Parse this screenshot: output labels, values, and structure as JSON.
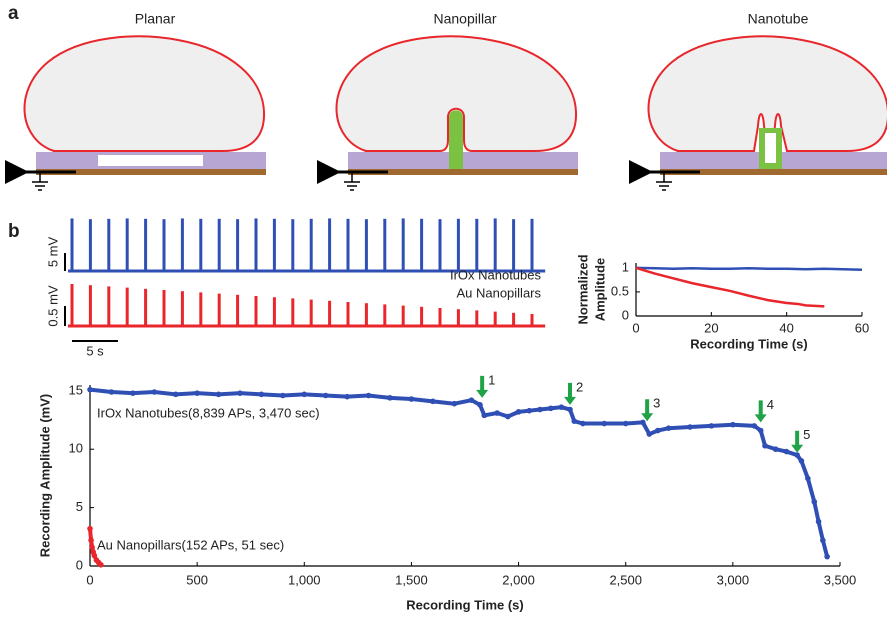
{
  "panel_a": {
    "label": "a",
    "titles": [
      "Planar",
      "Nanopillar",
      "Nanotube"
    ]
  },
  "panel_b": {
    "label": "b"
  },
  "chart_data": [
    {
      "type": "trace",
      "x": [
        0,
        2,
        4,
        6,
        8,
        10,
        12,
        14,
        16,
        18,
        20,
        22,
        24,
        26,
        28,
        30,
        32,
        34,
        36,
        38,
        40,
        42,
        44,
        46,
        48,
        50
      ],
      "series": [
        {
          "name": "IrOx Nanotubes",
          "color": "#2f4fb5",
          "values": [
            14.6,
            14.4,
            14.5,
            14.6,
            14.5,
            14.4,
            14.6,
            14.5,
            14.5,
            14.4,
            14.6,
            14.5,
            14.4,
            14.5,
            14.6,
            14.5,
            14.4,
            14.5,
            14.6,
            14.5,
            14.4,
            14.5,
            14.5,
            14.6,
            14.4,
            14.5
          ],
          "scale_bar": {
            "value": 5,
            "label": "5 mV"
          }
        },
        {
          "name": "Au Nanopillars",
          "color": "#e8262b",
          "values": [
            1.05,
            1.02,
            0.99,
            0.96,
            0.93,
            0.9,
            0.87,
            0.84,
            0.81,
            0.78,
            0.75,
            0.72,
            0.69,
            0.66,
            0.63,
            0.6,
            0.57,
            0.54,
            0.51,
            0.48,
            0.45,
            0.42,
            0.39,
            0.36,
            0.33,
            0.3
          ],
          "scale_bar": {
            "value": 0.5,
            "label": "0.5 mV"
          }
        }
      ],
      "time_bar": {
        "value": 5,
        "label": "5 s"
      }
    },
    {
      "type": "line",
      "y_label": [
        "Normalized",
        "Amplitude"
      ],
      "x_label": "Recording Time (s)",
      "xlim": [
        0,
        60
      ],
      "ylim": [
        0,
        1.1
      ],
      "xticks": [
        0,
        20,
        40,
        60
      ],
      "yticks": [
        0,
        0.5,
        1
      ],
      "series": [
        {
          "color": "#2f4fb5",
          "x": [
            0,
            5,
            10,
            15,
            20,
            25,
            30,
            35,
            40,
            45,
            50,
            55,
            60
          ],
          "values": [
            1,
            0.99,
            0.98,
            0.99,
            0.98,
            0.98,
            0.99,
            0.98,
            0.98,
            0.97,
            0.98,
            0.97,
            0.96
          ]
        },
        {
          "color": "#e8262b",
          "x": [
            0,
            2,
            5,
            10,
            15,
            20,
            25,
            30,
            35,
            40,
            43,
            45,
            50
          ],
          "values": [
            1,
            0.95,
            0.88,
            0.78,
            0.68,
            0.6,
            0.52,
            0.42,
            0.33,
            0.27,
            0.25,
            0.22,
            0.2
          ]
        }
      ]
    },
    {
      "type": "scatter",
      "x_label": "Recording Time (s)",
      "y_label": "Recording Amplitude (mV)",
      "xlim": [
        0,
        3500
      ],
      "ylim": [
        0,
        15.5
      ],
      "xticks": [
        0,
        500,
        {
          "value": 1000,
          "label": "1,000"
        },
        {
          "value": 1500,
          "label": "1,500"
        },
        {
          "value": 2000,
          "label": "2,000"
        },
        {
          "value": 2500,
          "label": "2,500"
        },
        {
          "value": 3000,
          "label": "3,000"
        },
        {
          "value": 3500,
          "label": "3,500"
        }
      ],
      "yticks": [
        0,
        5,
        10,
        15
      ],
      "series": [
        {
          "name": "IrOx Nanotubes(8,839 APs, 3,470 sec)",
          "color": "#2f4fb5",
          "x": [
            0,
            100,
            200,
            300,
            400,
            500,
            600,
            700,
            800,
            900,
            1000,
            1100,
            1200,
            1300,
            1400,
            1500,
            1600,
            1700,
            1780,
            1820,
            1840,
            1900,
            1950,
            2000,
            2050,
            2100,
            2150,
            2200,
            2240,
            2260,
            2300,
            2400,
            2500,
            2580,
            2610,
            2650,
            2700,
            2800,
            2900,
            3000,
            3100,
            3130,
            3150,
            3200,
            3250,
            3300,
            3320,
            3350,
            3380,
            3400,
            3420,
            3440
          ],
          "values": [
            15.1,
            14.9,
            14.8,
            14.9,
            14.7,
            14.8,
            14.7,
            14.8,
            14.7,
            14.6,
            14.7,
            14.6,
            14.5,
            14.6,
            14.4,
            14.3,
            14.1,
            13.9,
            14.2,
            13.8,
            12.9,
            13.1,
            12.8,
            13.2,
            13.3,
            13.4,
            13.5,
            13.6,
            13.4,
            12.4,
            12.2,
            12.2,
            12.2,
            12.3,
            11.3,
            11.6,
            11.8,
            11.9,
            12.0,
            12.1,
            12.0,
            11.6,
            10.3,
            10.0,
            9.8,
            9.5,
            9.0,
            7.5,
            5.5,
            3.8,
            2.2,
            0.8
          ]
        },
        {
          "name": "Au Nanopillars(152 APs, 51 sec)",
          "color": "#e8262b",
          "x": [
            0,
            5,
            10,
            15,
            20,
            30,
            40,
            51
          ],
          "values": [
            3.2,
            2.2,
            1.6,
            1.2,
            0.9,
            0.5,
            0.3,
            0.1
          ]
        }
      ],
      "annotations": [
        {
          "label": "1",
          "x": 1830,
          "y": 14.4
        },
        {
          "label": "2",
          "x": 2240,
          "y": 13.8
        },
        {
          "label": "3",
          "x": 2600,
          "y": 12.4
        },
        {
          "label": "4",
          "x": 3130,
          "y": 12.3
        },
        {
          "label": "5",
          "x": 3300,
          "y": 9.7
        }
      ]
    }
  ]
}
